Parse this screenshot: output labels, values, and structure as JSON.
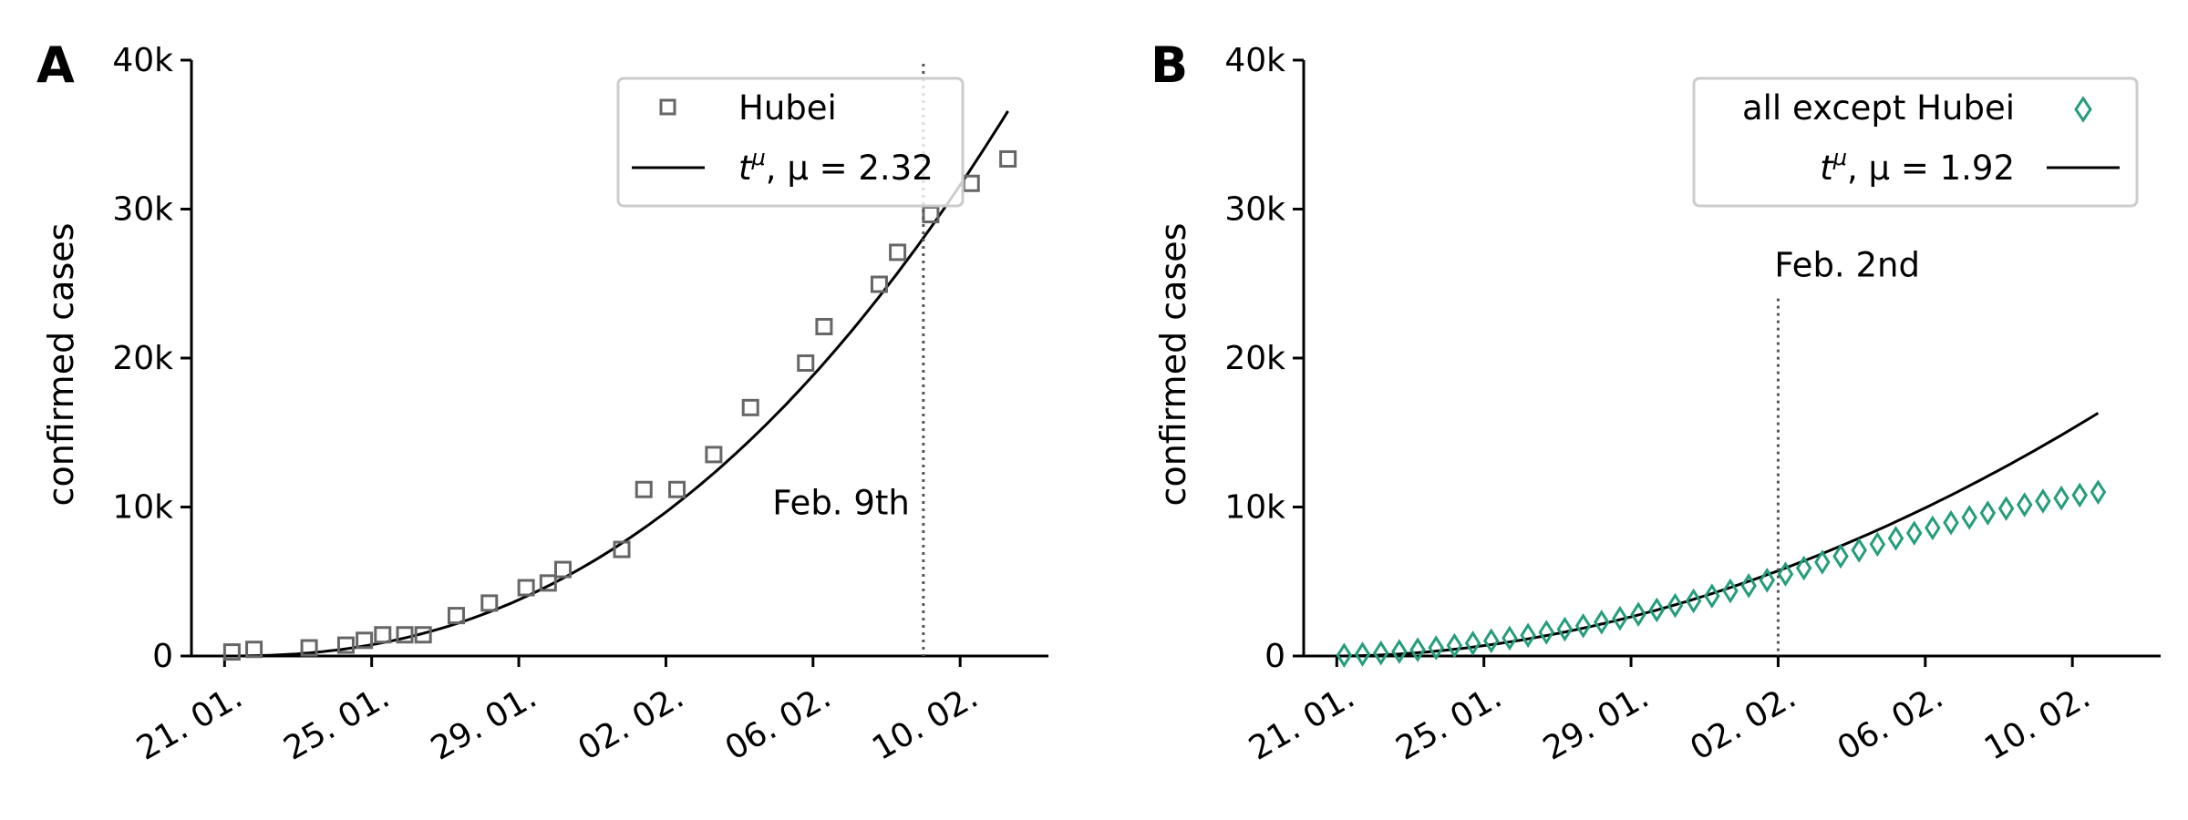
{
  "figure": {
    "panels": [
      {
        "letter": "A",
        "ylabel": "confirmed cases",
        "yticks": [
          "0",
          "10k",
          "20k",
          "30k",
          "40k"
        ],
        "xticks": [
          "21. 01.",
          "25. 01.",
          "29. 01.",
          "02. 02.",
          "06. 02.",
          "10. 02."
        ],
        "legend": [
          {
            "label": "Hubei",
            "marker": "square"
          },
          {
            "label_base": "t",
            "label_sup": "μ",
            "label_rest": ", μ = 2.32",
            "marker": "line"
          }
        ],
        "annotation": "Feb. 9th"
      },
      {
        "letter": "B",
        "ylabel": "confirmed cases",
        "yticks": [
          "0",
          "10k",
          "20k",
          "30k",
          "40k"
        ],
        "xticks": [
          "21. 01.",
          "25. 01.",
          "29. 01.",
          "02. 02.",
          "06. 02.",
          "10. 02."
        ],
        "legend": [
          {
            "label": "all except Hubei",
            "marker": "diamond"
          },
          {
            "label_base": "t",
            "label_sup": "μ",
            "label_rest": ", μ = 1.92",
            "marker": "line"
          }
        ],
        "annotation": "Feb. 2nd"
      }
    ]
  },
  "colors": {
    "hubei": "#666666",
    "rest": "#259d7c",
    "fit": "#000000",
    "vline": "#555555"
  },
  "chart_data": [
    {
      "type": "scatter",
      "panel": "A",
      "x_axis": "date (days since 21. 01., day 0 = 21. 01.)",
      "xlim": [
        -0.9,
        22.4
      ],
      "ylim": [
        0,
        40000
      ],
      "y_tick_values": [
        0,
        10000,
        20000,
        30000,
        40000
      ],
      "x_tick_values": [
        0,
        4,
        8,
        12,
        16,
        20
      ],
      "grid": false,
      "legend_position": "top-right",
      "series": [
        {
          "name": "Hubei",
          "kind": "markers",
          "marker": "square",
          "points": [
            [
              0.2,
              270
            ],
            [
              0.8,
              444
            ],
            [
              2.3,
              549
            ],
            [
              3.3,
              729
            ],
            [
              3.8,
              1052
            ],
            [
              4.3,
              1423
            ],
            [
              4.9,
              1423
            ],
            [
              5.4,
              1423
            ],
            [
              6.3,
              2714
            ],
            [
              7.2,
              3554
            ],
            [
              8.2,
              4586
            ],
            [
              8.8,
              4903
            ],
            [
              9.2,
              5806
            ],
            [
              10.8,
              7153
            ],
            [
              11.4,
              11177
            ],
            [
              12.3,
              11177
            ],
            [
              13.3,
              13522
            ],
            [
              14.3,
              16678
            ],
            [
              15.8,
              19665
            ],
            [
              16.3,
              22112
            ],
            [
              17.8,
              24953
            ],
            [
              18.3,
              27100
            ],
            [
              19.2,
              29631
            ],
            [
              20.3,
              31728
            ],
            [
              21.3,
              33366
            ]
          ]
        },
        {
          "name": "t^μ, μ = 2.32",
          "kind": "line",
          "function": "a*(t - t0)^mu",
          "mu": 2.32,
          "t0": 0,
          "a": 30.3,
          "x_end": 21.3
        }
      ],
      "vertical_line_x": 19.0,
      "annotation": {
        "text": "Feb. 9th",
        "x": 15.0,
        "y": 9500
      }
    },
    {
      "type": "scatter",
      "panel": "B",
      "x_axis": "date (days since 21. 01., day 0 = 21. 01.)",
      "xlim": [
        -0.9,
        22.4
      ],
      "ylim": [
        0,
        40000
      ],
      "y_tick_values": [
        0,
        10000,
        20000,
        30000,
        40000
      ],
      "x_tick_values": [
        0,
        4,
        8,
        12,
        16,
        20
      ],
      "grid": false,
      "legend_position": "top-right",
      "series": [
        {
          "name": "all except Hubei",
          "kind": "markers",
          "marker": "diamond",
          "points": [
            [
              0.2,
              50
            ],
            [
              0.7,
              120
            ],
            [
              1.2,
              200
            ],
            [
              1.7,
              300
            ],
            [
              2.2,
              420
            ],
            [
              2.7,
              550
            ],
            [
              3.2,
              700
            ],
            [
              3.7,
              860
            ],
            [
              4.2,
              1020
            ],
            [
              4.7,
              1200
            ],
            [
              5.2,
              1390
            ],
            [
              5.7,
              1590
            ],
            [
              6.2,
              1800
            ],
            [
              6.7,
              2030
            ],
            [
              7.2,
              2270
            ],
            [
              7.7,
              2530
            ],
            [
              8.2,
              2800
            ],
            [
              8.7,
              3090
            ],
            [
              9.2,
              3390
            ],
            [
              9.7,
              3700
            ],
            [
              10.2,
              4030
            ],
            [
              10.7,
              4370
            ],
            [
              11.2,
              4720
            ],
            [
              11.7,
              5090
            ],
            [
              12.2,
              5500
            ],
            [
              12.7,
              5900
            ],
            [
              13.2,
              6300
            ],
            [
              13.7,
              6700
            ],
            [
              14.2,
              7100
            ],
            [
              14.7,
              7500
            ],
            [
              15.2,
              7900
            ],
            [
              15.7,
              8250
            ],
            [
              16.2,
              8600
            ],
            [
              16.7,
              8950
            ],
            [
              17.2,
              9300
            ],
            [
              17.7,
              9600
            ],
            [
              18.2,
              9900
            ],
            [
              18.7,
              10150
            ],
            [
              19.2,
              10400
            ],
            [
              19.7,
              10600
            ],
            [
              20.2,
              10800
            ],
            [
              20.7,
              11000
            ]
          ]
        },
        {
          "name": "t^μ, μ = 1.92",
          "kind": "line",
          "function": "a*(t - t0)^mu",
          "mu": 1.92,
          "t0": 0,
          "a": 48.5,
          "x_end": 20.7
        }
      ],
      "vertical_line_x": 12.0,
      "annotation": {
        "text": "Feb. 2nd",
        "x": 12.0,
        "y": 25000
      }
    }
  ]
}
